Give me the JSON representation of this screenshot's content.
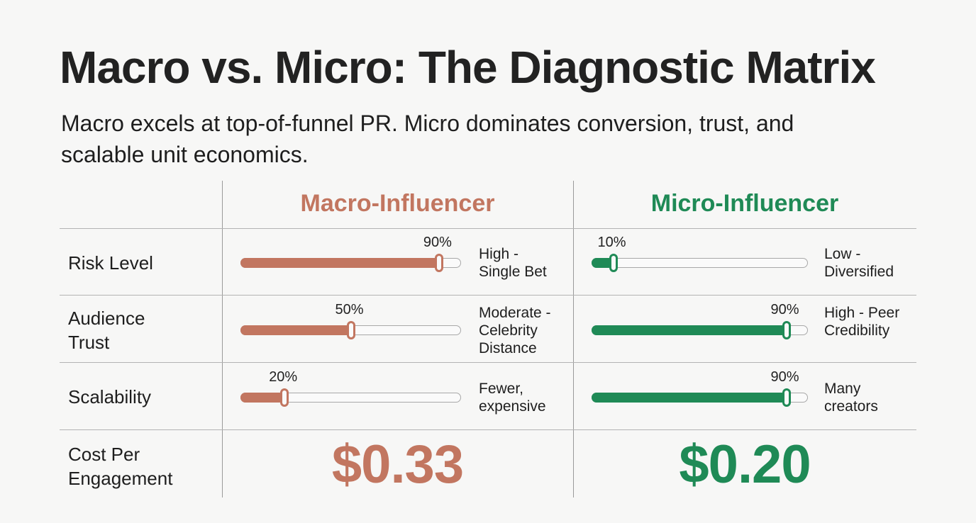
{
  "title": "Macro vs. Micro: The Diagnostic Matrix",
  "subtitle": "Macro excels at top-of-funnel PR. Micro dominates conversion, trust, and scalable unit economics.",
  "columns": {
    "macro": {
      "label": "Macro-Influencer",
      "color": "#c27660"
    },
    "micro": {
      "label": "Micro-Influencer",
      "color": "#1f8a56"
    }
  },
  "rows": [
    {
      "label": "Risk Level",
      "macro": {
        "pct_label": "90%",
        "value": 0.9,
        "desc": "High - Single Bet"
      },
      "micro": {
        "pct_label": "10%",
        "value": 0.1,
        "desc": "Low - Diversified"
      }
    },
    {
      "label": "Audience Trust",
      "macro": {
        "pct_label": "50%",
        "value": 0.5,
        "desc": "Moderate - Celebrity Distance"
      },
      "micro": {
        "pct_label": "90%",
        "value": 0.9,
        "desc": "High - Peer Credibility"
      }
    },
    {
      "label": "Scalability",
      "macro": {
        "pct_label": "20%",
        "value": 0.2,
        "desc": "Fewer, expensive"
      },
      "micro": {
        "pct_label": "90%",
        "value": 0.9,
        "desc": "Many creators"
      }
    }
  ],
  "cost": {
    "label": "Cost Per Engagement",
    "macro": "$0.33",
    "micro": "$0.20"
  }
}
